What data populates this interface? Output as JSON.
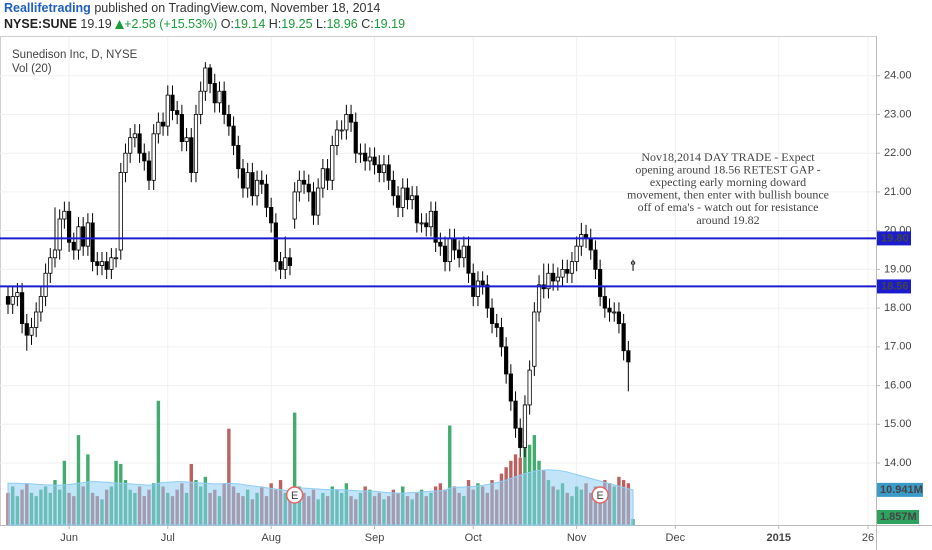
{
  "header": {
    "author": "Reallifetrading",
    "published": "published on TradingView.com, November 18, 2014",
    "symbol": "NYSE:SUNE",
    "change": "+2.58 (+15.53%)",
    "ohlc_labels": [
      "O:",
      "H:",
      "L:",
      "C:"
    ]
  },
  "chart_data": {
    "type": "candlestick",
    "title": "Sunedison Inc, D, NYSE",
    "volume_label": "Vol (20)",
    "open": [
      18.3,
      18.1,
      18.3,
      18.4,
      17.6,
      17.3,
      17.5,
      17.9,
      18.3,
      18.9,
      19.3,
      19.5,
      20.3,
      20.5,
      19.7,
      19.5,
      20.1,
      19.6,
      20.2,
      19.2,
      19.1,
      19.2,
      19.0,
      19.3,
      19.5,
      21.5,
      22.0,
      22.4,
      22.5,
      22.0,
      21.8,
      21.3,
      22.5,
      22.8,
      22.7,
      23.5,
      23.1,
      23.0,
      22.3,
      22.4,
      21.5,
      23.0,
      23.6,
      24.2,
      23.8,
      23.3,
      23.6,
      23.0,
      22.7,
      22.2,
      21.6,
      21.1,
      21.5,
      20.9,
      21.3,
      21.2,
      20.6,
      20.2,
      19.2,
      19.0,
      19.3,
      20.3,
      21.0,
      21.3,
      21.2,
      21.0,
      20.4,
      21.1,
      21.6,
      21.3,
      22.2,
      22.6,
      22.6,
      23.0,
      22.8,
      22.0,
      22.0,
      21.8,
      21.9,
      21.7,
      21.5,
      21.7,
      21.3,
      20.9,
      20.6,
      21.1,
      20.8,
      20.9,
      20.2,
      20.2,
      20.1,
      20.5,
      19.7,
      19.6,
      19.2,
      19.8,
      19.5,
      19.3,
      19.6,
      18.9,
      18.3,
      18.7,
      18.6,
      18.0,
      17.6,
      17.5,
      17.0,
      16.3,
      15.6,
      14.9,
      14.4,
      15.5,
      16.5,
      17.9,
      18.6,
      18.5,
      18.9,
      18.7,
      18.8,
      19.0,
      18.9,
      19.2,
      19.6,
      19.9,
      19.8,
      19.5,
      19.0,
      18.3,
      18.0,
      17.9,
      17.9,
      17.6,
      16.9,
      19.14
    ],
    "high": [
      18.55,
      18.55,
      18.65,
      18.65,
      17.85,
      17.75,
      18.15,
      18.55,
      19.15,
      19.55,
      20.6,
      20.55,
      20.75,
      20.75,
      19.95,
      20.35,
      20.35,
      20.45,
      20.45,
      19.45,
      19.45,
      19.45,
      19.55,
      19.55,
      21.75,
      22.25,
      22.65,
      22.75,
      22.75,
      22.25,
      22.05,
      22.75,
      23.05,
      23.05,
      23.75,
      23.75,
      23.35,
      23.25,
      22.65,
      22.65,
      23.25,
      23.85,
      24.35,
      24.3,
      24.05,
      23.85,
      23.85,
      23.25,
      22.95,
      22.45,
      21.85,
      21.75,
      21.75,
      21.55,
      21.55,
      21.45,
      20.85,
      20.45,
      19.45,
      19.85,
      19.55,
      21.25,
      21.55,
      21.55,
      21.45,
      21.25,
      21.35,
      21.85,
      21.85,
      22.45,
      22.85,
      22.85,
      23.25,
      23.25,
      23.05,
      22.25,
      22.25,
      22.15,
      22.15,
      21.95,
      21.95,
      21.95,
      21.55,
      21.15,
      21.35,
      21.35,
      21.15,
      21.15,
      20.45,
      20.45,
      20.75,
      20.75,
      19.95,
      19.85,
      20.05,
      20.05,
      19.75,
      19.85,
      19.85,
      19.15,
      18.95,
      18.95,
      18.85,
      18.25,
      17.85,
      17.75,
      17.25,
      16.55,
      15.85,
      15.15,
      15.75,
      16.65,
      18.15,
      18.85,
      19.15,
      19.15,
      19.15,
      19.05,
      19.25,
      19.25,
      19.45,
      19.85,
      20.2,
      20.15,
      20.05,
      19.75,
      19.25,
      18.55,
      18.25,
      18.15,
      18.15,
      17.85,
      17.15,
      19.25
    ],
    "low": [
      17.85,
      17.85,
      18.05,
      17.35,
      16.9,
      17.05,
      17.25,
      17.65,
      18.05,
      18.65,
      19.05,
      19.25,
      20.05,
      19.45,
      19.25,
      19.25,
      19.35,
      19.35,
      18.95,
      18.85,
      18.85,
      18.75,
      18.75,
      19.05,
      19.25,
      21.25,
      21.75,
      22.15,
      21.75,
      21.55,
      21.05,
      21.05,
      22.25,
      22.45,
      22.45,
      22.85,
      22.75,
      22.05,
      22.05,
      21.25,
      21.25,
      22.75,
      23.35,
      23.55,
      23.05,
      23.05,
      22.75,
      22.45,
      21.95,
      21.35,
      20.85,
      20.85,
      20.65,
      20.65,
      20.95,
      20.35,
      19.95,
      18.95,
      18.75,
      18.75,
      18.85,
      20.05,
      20.75,
      20.95,
      20.75,
      20.15,
      20.15,
      20.85,
      21.05,
      21.05,
      21.95,
      22.35,
      22.35,
      22.55,
      21.75,
      21.75,
      21.55,
      21.55,
      21.45,
      21.25,
      21.25,
      21.05,
      20.65,
      20.35,
      20.35,
      20.55,
      20.55,
      19.95,
      19.95,
      19.85,
      19.85,
      19.45,
      19.35,
      18.95,
      18.95,
      19.25,
      19.05,
      19.05,
      18.65,
      18.05,
      18.05,
      18.35,
      17.75,
      17.35,
      17.25,
      16.75,
      16.05,
      15.35,
      14.65,
      14.15,
      14.15,
      15.25,
      16.25,
      17.65,
      18.25,
      18.25,
      18.45,
      18.45,
      18.55,
      18.65,
      18.65,
      18.95,
      19.35,
      19.55,
      19.25,
      18.75,
      18.05,
      17.75,
      17.65,
      17.65,
      17.35,
      16.65,
      15.85,
      18.96
    ],
    "close": [
      18.1,
      18.3,
      18.4,
      17.6,
      17.3,
      17.5,
      17.9,
      18.3,
      18.9,
      19.3,
      19.5,
      20.3,
      20.5,
      19.7,
      19.5,
      20.1,
      19.6,
      20.2,
      19.2,
      19.1,
      19.2,
      19.0,
      19.3,
      19.3,
      21.5,
      22.0,
      22.4,
      22.5,
      22.0,
      21.8,
      21.3,
      22.5,
      22.8,
      22.7,
      23.5,
      23.1,
      23.0,
      22.3,
      22.4,
      21.5,
      23.0,
      23.6,
      24.2,
      23.8,
      23.3,
      23.6,
      23.0,
      22.7,
      22.2,
      21.6,
      21.1,
      21.5,
      20.9,
      21.3,
      21.2,
      20.6,
      20.2,
      19.2,
      19.0,
      19.3,
      19.1,
      21.0,
      21.3,
      21.2,
      21.0,
      20.4,
      21.1,
      21.6,
      21.3,
      22.2,
      22.6,
      22.6,
      23.0,
      22.8,
      22.0,
      22.0,
      21.8,
      21.9,
      21.7,
      21.5,
      21.7,
      21.3,
      20.9,
      20.6,
      21.1,
      20.8,
      20.9,
      20.2,
      20.2,
      20.1,
      20.5,
      19.7,
      19.6,
      19.2,
      19.8,
      19.5,
      19.3,
      19.6,
      18.9,
      18.3,
      18.7,
      18.6,
      18.0,
      17.6,
      17.5,
      17.0,
      16.3,
      15.6,
      14.9,
      14.4,
      15.5,
      16.4,
      17.9,
      18.6,
      18.5,
      18.9,
      18.7,
      18.8,
      19.0,
      18.9,
      19.2,
      19.6,
      19.9,
      19.8,
      19.5,
      19.0,
      18.3,
      18.0,
      17.9,
      17.9,
      17.6,
      16.9,
      16.61,
      19.19
    ],
    "volume": [
      10,
      12,
      9,
      11,
      13,
      10,
      9,
      11,
      12,
      10,
      14,
      11,
      20,
      10,
      9,
      28,
      12,
      22,
      10,
      9,
      8,
      11,
      12,
      20,
      19,
      14,
      11,
      10,
      12,
      9,
      11,
      13,
      38.7,
      12,
      10,
      9,
      11,
      13,
      10,
      19,
      14,
      12,
      15,
      10,
      11,
      9,
      13,
      30,
      12,
      10,
      9,
      11,
      8,
      10,
      12,
      9,
      13,
      11,
      14,
      10,
      9,
      35,
      12,
      10,
      9,
      11,
      8,
      10,
      9,
      12,
      11,
      10,
      13,
      9,
      8,
      10,
      12,
      11,
      9,
      10,
      8,
      9,
      11,
      10,
      12,
      9,
      8,
      10,
      11,
      9,
      10,
      12,
      13,
      11,
      31,
      12,
      10,
      9,
      14,
      11,
      13,
      12,
      10,
      14,
      11,
      16,
      18,
      20,
      22,
      21,
      24,
      25,
      28,
      20,
      17,
      14,
      12,
      11,
      13,
      10,
      9,
      12,
      11,
      13,
      10,
      12,
      11,
      14,
      13,
      12,
      15,
      14,
      13,
      1.857
    ],
    "volume_ma": [
      13,
      13,
      13,
      12.9,
      12.9,
      12.8,
      12.7,
      12.6,
      12.5,
      12.5,
      12.4,
      12.4,
      12.5,
      12.6,
      12.8,
      13,
      13.2,
      13.4,
      13.5,
      13.5,
      13.4,
      13.3,
      13.2,
      13.1,
      13,
      12.9,
      12.8,
      12.7,
      12.6,
      12.5,
      12.4,
      12.5,
      13,
      13.2,
      13.3,
      13.4,
      13.5,
      13.5,
      13.4,
      13.3,
      13.2,
      13.1,
      13,
      12.9,
      12.8,
      12.8,
      12.9,
      13,
      12.9,
      12.8,
      12.6,
      12.4,
      12.2,
      12,
      11.8,
      11.6,
      11.4,
      11.2,
      11,
      10.8,
      10.6,
      11.5,
      11.6,
      11.5,
      11.4,
      11.3,
      11.2,
      11.1,
      11,
      11,
      11,
      11,
      10.9,
      10.8,
      10.7,
      10.6,
      10.6,
      10.5,
      10.5,
      10.4,
      10.2,
      10.1,
      10,
      9.9,
      9.9,
      10,
      10.1,
      10.2,
      10.3,
      10.4,
      10.5,
      10.6,
      10.7,
      10.8,
      11.5,
      11.7,
      11.8,
      11.8,
      11.9,
      12,
      12.2,
      12.4,
      12.6,
      12.9,
      13.2,
      13.6,
      14,
      14.5,
      15,
      15.5,
      16,
      16.4,
      16.8,
      17,
      17.1,
      17.2,
      17.1,
      17,
      16.8,
      16.5,
      16.1,
      15.7,
      15.3,
      14.9,
      14.5,
      14.1,
      13.7,
      13.3,
      12.9,
      12.5,
      12.1,
      11.7,
      11.3,
      10.941
    ],
    "volume_last_label": "1.857M",
    "volume_ma_last_label": "10.941M",
    "up_color": "#ffffff",
    "down_color": "#000000",
    "volume_up_color": "#2ea35f",
    "volume_down_color": "#b5504f",
    "volume_ma_color": "#8ecdf2",
    "xlim": [
      -1.7,
      184.7
    ],
    "xticks": [
      {
        "value": 13,
        "label": "Jun"
      },
      {
        "value": 34,
        "label": "Jul"
      },
      {
        "value": 56,
        "label": "Aug"
      },
      {
        "value": 78,
        "label": "Sep"
      },
      {
        "value": 99,
        "label": "Oct"
      },
      {
        "value": 121,
        "label": "Nov"
      },
      {
        "value": 142,
        "label": "Dec"
      },
      {
        "value": 164,
        "label": "2015"
      },
      {
        "value": 183,
        "label": "26"
      }
    ],
    "ylim": [
      12.4,
      25.0
    ],
    "yticks": [
      {
        "value": 14,
        "label": "14.00"
      },
      {
        "value": 15,
        "label": "15.00"
      },
      {
        "value": 16,
        "label": "16.00"
      },
      {
        "value": 17,
        "label": "17.00"
      },
      {
        "value": 18,
        "label": "18.00"
      },
      {
        "value": 19,
        "label": "19.00"
      },
      {
        "value": 20,
        "label": "20.00"
      },
      {
        "value": 21,
        "label": "21.00"
      },
      {
        "value": 22,
        "label": "22.00"
      },
      {
        "value": 23,
        "label": "23.00"
      },
      {
        "value": 24,
        "label": "24.00"
      }
    ],
    "volume_ylim": [
      0,
      152
    ],
    "grid": true,
    "hlines": [
      {
        "value": 19.8,
        "label": "19.80",
        "color": "#1c1ccf"
      },
      {
        "value": 18.56,
        "label": "18.56",
        "color": "#1c1ccf"
      }
    ],
    "events": [
      {
        "index": 61,
        "label": "E"
      },
      {
        "index": 126,
        "label": "E"
      }
    ],
    "annotation": [
      "Nov18,2014 DAY TRADE - Expect",
      "opening around 18.56 RETEST GAP -",
      "expecting early morning doward",
      "movement, then enter with bullish bounce",
      "off of ema's - watch out for resistance",
      "around 19.82"
    ]
  }
}
